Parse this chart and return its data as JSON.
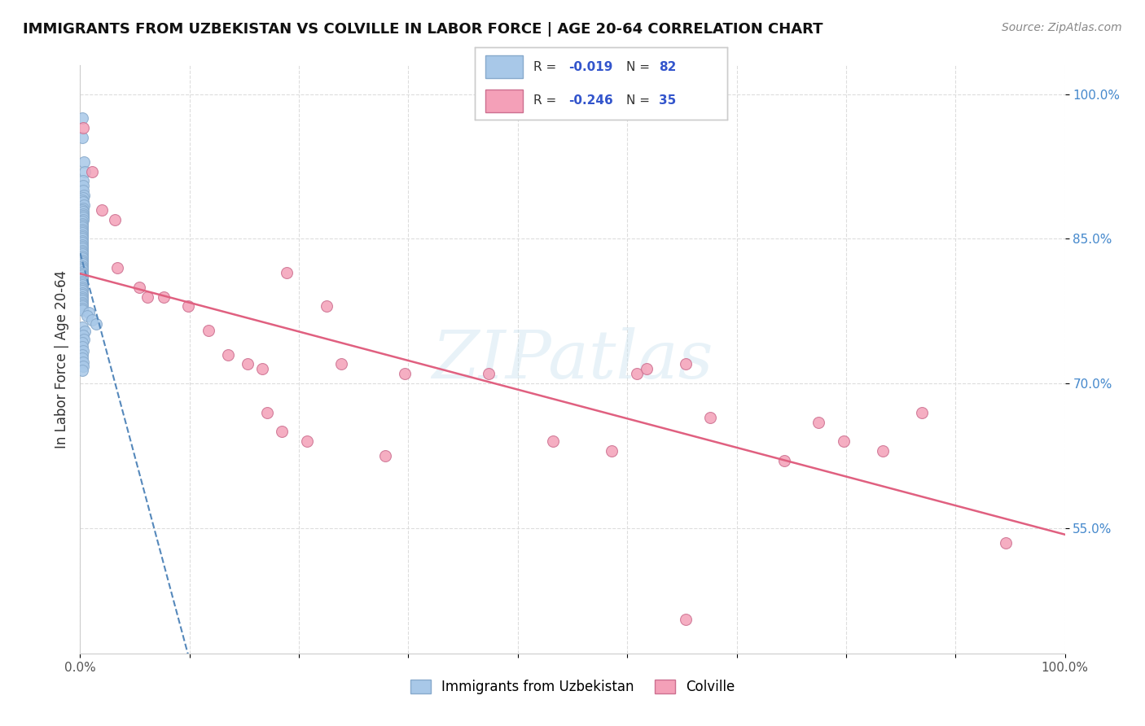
{
  "title": "IMMIGRANTS FROM UZBEKISTAN VS COLVILLE IN LABOR FORCE | AGE 20-64 CORRELATION CHART",
  "source": "Source: ZipAtlas.com",
  "ylabel": "In Labor Force | Age 20-64",
  "xlim": [
    0.0,
    1.0
  ],
  "ylim": [
    0.42,
    1.03
  ],
  "yticks": [
    0.55,
    0.7,
    0.85,
    1.0
  ],
  "ytick_labels": [
    "55.0%",
    "70.0%",
    "85.0%",
    "100.0%"
  ],
  "xtick_labels": [
    "0.0%",
    "",
    "",
    "",
    "",
    "",
    "",
    "",
    "",
    "100.0%"
  ],
  "watermark": "ZIPatlas",
  "uzbekistan_x": [
    0.002,
    0.002,
    0.004,
    0.005,
    0.003,
    0.003,
    0.003,
    0.004,
    0.003,
    0.002,
    0.003,
    0.004,
    0.003,
    0.002,
    0.003,
    0.003,
    0.003,
    0.003,
    0.003,
    0.002,
    0.002,
    0.002,
    0.002,
    0.002,
    0.002,
    0.002,
    0.002,
    0.002,
    0.002,
    0.002,
    0.002,
    0.002,
    0.002,
    0.002,
    0.002,
    0.002,
    0.002,
    0.002,
    0.002,
    0.002,
    0.002,
    0.002,
    0.002,
    0.002,
    0.002,
    0.002,
    0.002,
    0.002,
    0.002,
    0.002,
    0.002,
    0.002,
    0.002,
    0.002,
    0.002,
    0.002,
    0.002,
    0.002,
    0.002,
    0.002,
    0.002,
    0.002,
    0.002,
    0.002,
    0.002,
    0.002,
    0.009,
    0.007,
    0.012,
    0.016,
    0.002,
    0.005,
    0.003,
    0.004,
    0.002,
    0.002,
    0.003,
    0.002,
    0.002,
    0.003,
    0.003,
    0.002
  ],
  "uzbekistan_y": [
    0.975,
    0.955,
    0.93,
    0.92,
    0.91,
    0.905,
    0.9,
    0.895,
    0.893,
    0.89,
    0.888,
    0.885,
    0.882,
    0.88,
    0.878,
    0.876,
    0.874,
    0.872,
    0.87,
    0.868,
    0.866,
    0.864,
    0.862,
    0.86,
    0.858,
    0.856,
    0.854,
    0.852,
    0.85,
    0.848,
    0.846,
    0.844,
    0.842,
    0.84,
    0.838,
    0.836,
    0.834,
    0.832,
    0.83,
    0.828,
    0.826,
    0.824,
    0.822,
    0.82,
    0.818,
    0.816,
    0.814,
    0.812,
    0.81,
    0.808,
    0.806,
    0.804,
    0.802,
    0.8,
    0.798,
    0.796,
    0.794,
    0.792,
    0.79,
    0.788,
    0.786,
    0.784,
    0.782,
    0.78,
    0.778,
    0.776,
    0.774,
    0.77,
    0.766,
    0.762,
    0.758,
    0.754,
    0.75,
    0.746,
    0.742,
    0.738,
    0.734,
    0.73,
    0.726,
    0.722,
    0.718,
    0.714
  ],
  "colville_x": [
    0.003,
    0.012,
    0.022,
    0.035,
    0.038,
    0.06,
    0.068,
    0.085,
    0.11,
    0.13,
    0.15,
    0.17,
    0.185,
    0.19,
    0.205,
    0.21,
    0.23,
    0.25,
    0.265,
    0.31,
    0.33,
    0.415,
    0.48,
    0.54,
    0.565,
    0.575,
    0.615,
    0.64,
    0.715,
    0.75,
    0.775,
    0.815,
    0.855,
    0.94,
    0.615
  ],
  "colville_y": [
    0.965,
    0.92,
    0.88,
    0.87,
    0.82,
    0.8,
    0.79,
    0.79,
    0.78,
    0.755,
    0.73,
    0.72,
    0.715,
    0.67,
    0.65,
    0.815,
    0.64,
    0.78,
    0.72,
    0.625,
    0.71,
    0.71,
    0.64,
    0.63,
    0.71,
    0.715,
    0.72,
    0.665,
    0.62,
    0.66,
    0.64,
    0.63,
    0.67,
    0.535,
    0.455
  ],
  "uzbek_line_color": "#5588bb",
  "colville_line_color": "#e06080",
  "uzbek_dot_color": "#a8c8e8",
  "colville_dot_color": "#f4a0b8",
  "uzbek_R": -0.019,
  "uzbek_N": 82,
  "colville_R": -0.246,
  "colville_N": 35,
  "R_color": "#3355cc",
  "N_color": "#3355cc",
  "background_color": "#ffffff",
  "grid_color": "#dddddd",
  "legend_text_color": "#333333",
  "source_color": "#888888",
  "title_color": "#111111",
  "ytick_color": "#4488cc",
  "xtick_color": "#555555"
}
